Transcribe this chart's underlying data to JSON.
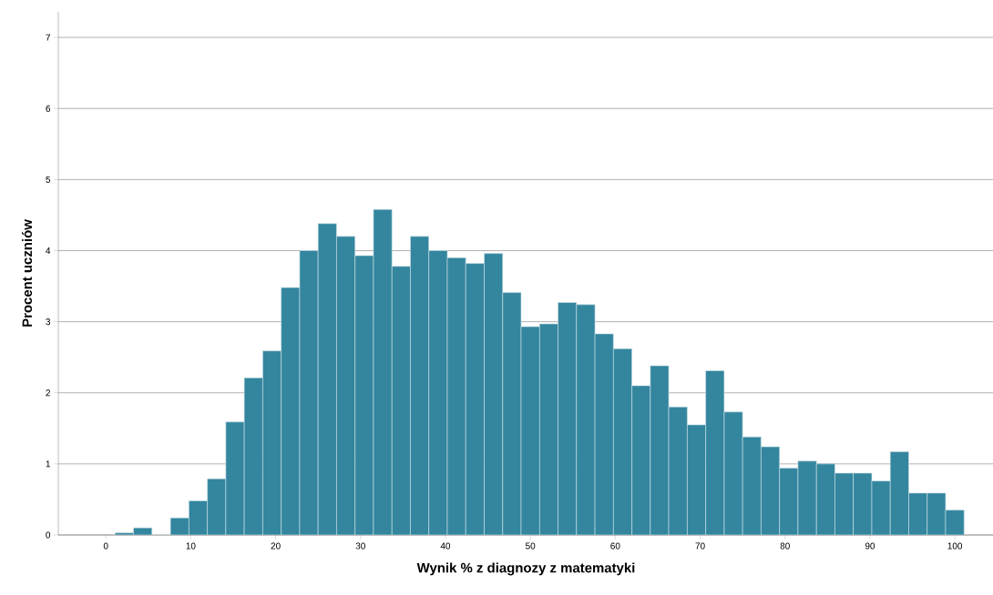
{
  "chart_data": {
    "type": "histogram",
    "xlabel": "Wynik % z diagnozy z matematyki",
    "ylabel": "Procent uczniów",
    "bins": [
      1.09,
      3.26,
      5.43,
      7.61,
      9.78,
      11.96,
      14.13,
      16.3,
      18.48,
      20.65,
      22.83,
      25.0,
      27.17,
      29.35,
      31.52,
      33.7,
      35.87,
      38.04,
      40.22,
      42.39,
      44.57,
      46.74,
      48.91,
      51.09,
      53.26,
      55.43,
      57.61,
      59.78,
      61.96,
      64.13,
      66.3,
      68.48,
      70.65,
      72.83,
      75.0,
      77.17,
      79.35,
      81.52,
      83.7,
      85.87,
      88.04,
      90.22,
      92.39,
      94.57,
      96.74,
      98.91,
      101.09
    ],
    "values": [
      0.03,
      0.1,
      0,
      0.24,
      0.48,
      0.79,
      1.59,
      2.21,
      2.59,
      3.48,
      4.0,
      4.38,
      4.2,
      3.93,
      4.58,
      3.78,
      4.2,
      4.0,
      3.9,
      3.82,
      3.96,
      3.41,
      2.93,
      2.97,
      3.27,
      3.24,
      2.83,
      2.62,
      2.1,
      2.38,
      1.8,
      1.55,
      2.31,
      1.73,
      1.38,
      1.24,
      0.94,
      1.04,
      1.0,
      0.87,
      0.87,
      0.76,
      1.17,
      0.59,
      0.59,
      0.35
    ],
    "color": "#33869e",
    "xlim": [
      -5.6,
      104.6
    ],
    "ylim": [
      0,
      7.36
    ],
    "xticks": [
      0,
      10,
      20,
      30,
      40,
      50,
      60,
      70,
      80,
      90,
      100
    ],
    "yticks": [
      0,
      1,
      2,
      3,
      4,
      5,
      6,
      7
    ],
    "grid": "y"
  }
}
